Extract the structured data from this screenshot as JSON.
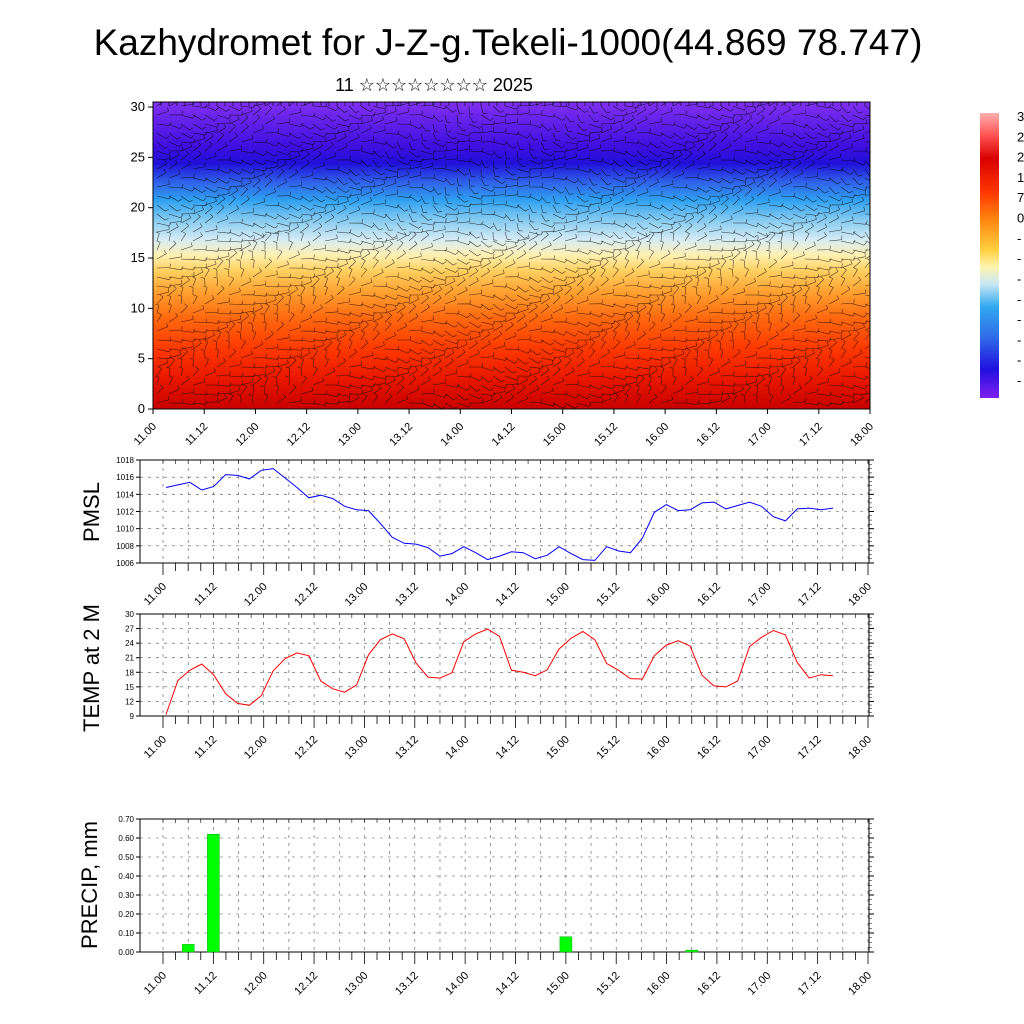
{
  "page": {
    "title": "Kazhydromet for J-Z-g.Tekeli-1000(44.869 78.747)",
    "subtitle": "11 ☆☆☆☆☆☆☆☆ 2025"
  },
  "colors": {
    "pmsl_line": "#0000ff",
    "temp_line": "#ff0000",
    "precip_bar": "#00ff00",
    "precip_bar_stroke": "#00aa00"
  },
  "chart_data": [
    {
      "id": "cross_section",
      "type": "heatmap",
      "title": "",
      "xlabel": "",
      "ylabel": "",
      "x_ticks": [
        "11.00",
        "11.12",
        "12.00",
        "12.12",
        "13.00",
        "13.12",
        "14.00",
        "14.12",
        "15.00",
        "15.12",
        "16.00",
        "16.12",
        "17.00",
        "17.12",
        "18.00"
      ],
      "y_ticks": [
        "0",
        "5",
        "10",
        "15",
        "20",
        "25",
        "30"
      ],
      "ylim": [
        0,
        30.5
      ],
      "colorbar_labels": [
        "3",
        "2",
        "2",
        "1",
        "7",
        "0",
        "-",
        "-",
        "-",
        "-",
        "-",
        "-",
        "-",
        "-"
      ],
      "overlay": "wind barbs"
    },
    {
      "id": "pmsl",
      "type": "line",
      "ylabel": "PMSL",
      "ylim": [
        1006,
        1018
      ],
      "y_ticks": [
        "1006",
        "1008",
        "1010",
        "1012",
        "1014",
        "1016",
        "1018"
      ],
      "x_ticks": [
        "11.00",
        "11.12",
        "12.00",
        "12.12",
        "13.00",
        "13.12",
        "14.00",
        "14.12",
        "15.00",
        "15.12",
        "16.00",
        "16.12",
        "17.00",
        "17.12",
        "18.00"
      ],
      "values": [
        1014.8,
        1015.1,
        1015.4,
        1014.5,
        1014.9,
        1016.3,
        1016.2,
        1015.8,
        1016.8,
        1017.0,
        1015.9,
        1014.8,
        1013.6,
        1013.9,
        1013.5,
        1012.6,
        1012.2,
        1012.1,
        1010.6,
        1009.0,
        1008.3,
        1008.2,
        1007.8,
        1006.8,
        1007.1,
        1007.9,
        1007.2,
        1006.4,
        1006.8,
        1007.3,
        1007.2,
        1006.5,
        1006.9,
        1007.9,
        1007.1,
        1006.4,
        1006.3,
        1007.9,
        1007.4,
        1007.2,
        1008.9,
        1011.9,
        1012.8,
        1012.1,
        1012.2,
        1013.0,
        1013.1,
        1012.3,
        1012.7,
        1013.1,
        1012.6,
        1011.4,
        1010.9,
        1012.3,
        1012.4,
        1012.2,
        1012.4
      ]
    },
    {
      "id": "temp",
      "type": "line",
      "ylabel": "TEMP at 2 M",
      "ylim": [
        9,
        30
      ],
      "y_ticks": [
        "9",
        "12",
        "15",
        "18",
        "21",
        "24",
        "27",
        "30"
      ],
      "x_ticks": [
        "11.00",
        "11.12",
        "12.00",
        "12.12",
        "13.00",
        "13.12",
        "14.00",
        "14.12",
        "15.00",
        "15.12",
        "16.00",
        "16.12",
        "17.00",
        "17.12",
        "18.00"
      ],
      "values": [
        9.3,
        16.3,
        18.4,
        19.7,
        17.5,
        13.6,
        11.6,
        11.2,
        13.2,
        18.3,
        20.8,
        22.0,
        21.4,
        16.2,
        14.6,
        13.9,
        15.4,
        21.6,
        24.7,
        25.9,
        24.9,
        19.9,
        17.0,
        16.8,
        17.9,
        24.3,
        25.9,
        26.9,
        25.4,
        18.4,
        18.0,
        17.3,
        18.5,
        22.8,
        25.0,
        26.4,
        24.7,
        19.8,
        18.4,
        16.7,
        16.6,
        21.4,
        23.6,
        24.5,
        23.4,
        17.4,
        15.2,
        15.0,
        16.2,
        23.3,
        25.2,
        26.6,
        25.7,
        20.0,
        16.8,
        17.5,
        17.3
      ]
    },
    {
      "id": "precip",
      "type": "bar",
      "ylabel": "PRECIP, mm",
      "ylim": [
        0,
        0.7
      ],
      "y_ticks": [
        "0.00",
        "0.10",
        "0.20",
        "0.30",
        "0.40",
        "0.50",
        "0.60",
        "0.70"
      ],
      "x_ticks": [
        "11.00",
        "11.12",
        "12.00",
        "12.12",
        "13.00",
        "13.12",
        "14.00",
        "14.12",
        "15.00",
        "15.12",
        "16.00",
        "16.12",
        "17.00",
        "17.12",
        "18.00"
      ],
      "bars": [
        {
          "x": 11.25,
          "value": 0.04
        },
        {
          "x": 11.5,
          "value": 0.62
        },
        {
          "x": 15.0,
          "value": 0.08
        },
        {
          "x": 16.25,
          "value": 0.01
        }
      ]
    }
  ]
}
